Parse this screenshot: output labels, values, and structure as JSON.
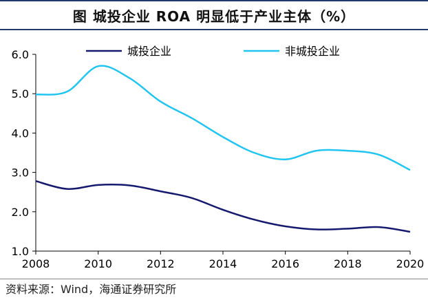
{
  "chart_data": {
    "type": "line",
    "title": "图 城投企业 ROA 明显低于产业主体（%）",
    "xlabel": "",
    "ylabel": "",
    "x": [
      2008,
      2009,
      2010,
      2011,
      2012,
      2013,
      2014,
      2015,
      2016,
      2017,
      2018,
      2019,
      2020
    ],
    "xticks": [
      "2008",
      "2010",
      "2012",
      "2014",
      "2016",
      "2018",
      "2020"
    ],
    "yticks": [
      "1.0",
      "2.0",
      "3.0",
      "4.0",
      "5.0",
      "6.0"
    ],
    "xlim": [
      2008,
      2020
    ],
    "ylim": [
      1.0,
      6.0
    ],
    "legend_position": "top",
    "series": [
      {
        "name": "城投企业",
        "color": "#14196e",
        "values": [
          2.78,
          2.58,
          2.68,
          2.67,
          2.52,
          2.35,
          2.05,
          1.8,
          1.63,
          1.55,
          1.57,
          1.61,
          1.49
        ]
      },
      {
        "name": "非城投企业",
        "color": "#22c4f0",
        "values": [
          4.98,
          5.05,
          5.7,
          5.4,
          4.8,
          4.38,
          3.9,
          3.5,
          3.33,
          3.55,
          3.55,
          3.45,
          3.06
        ]
      }
    ]
  },
  "source": "资料来源：Wind，海通证券研究所"
}
